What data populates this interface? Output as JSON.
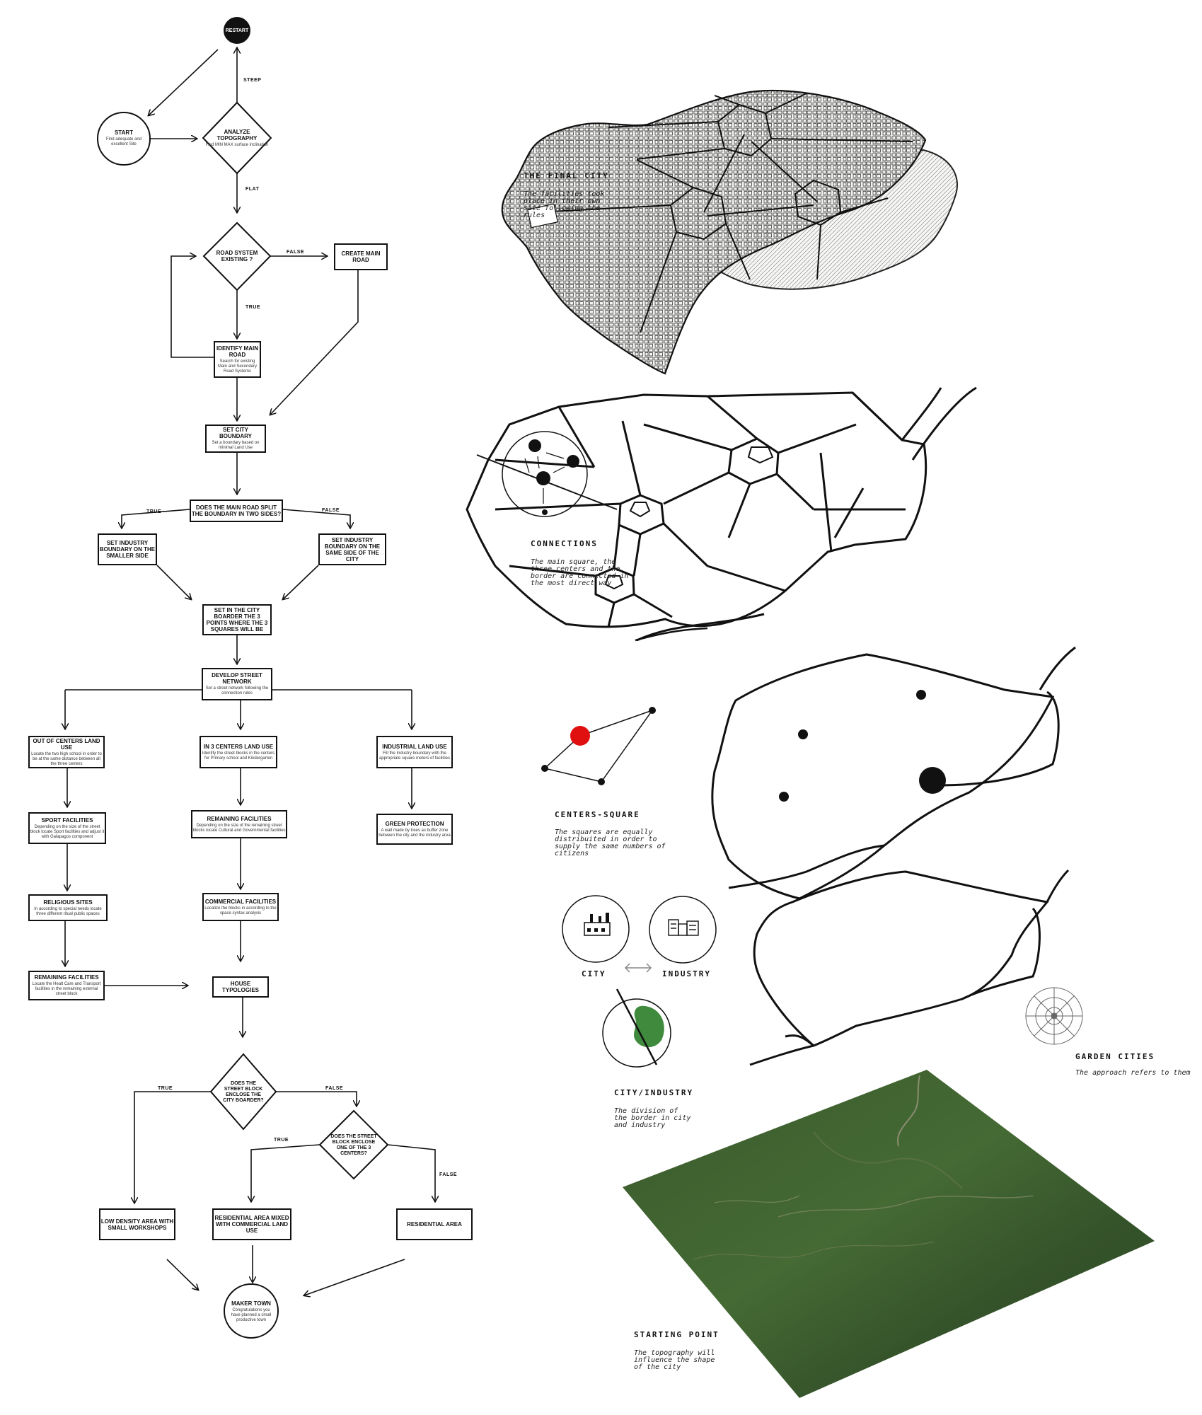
{
  "flowchart": {
    "nodes": {
      "restart": {
        "title": "RESTART"
      },
      "start": {
        "title": "START",
        "desc": "Find adequate and excellent Site"
      },
      "analyze": {
        "title": "ANALYZE TOPOGRAPHY",
        "desc": "Find MIN MAX surface inclination"
      },
      "road_system": {
        "title": "ROAD SYSTEM EXISTING ?"
      },
      "create_road": {
        "title": "CREATE MAIN ROAD"
      },
      "identify_road": {
        "title": "IDENTIFY MAIN ROAD",
        "desc": "Search for existing Main and Secondary Road Systems"
      },
      "city_boundary": {
        "title": "SET CITY BOUNDARY",
        "desc": "Set a boundary based on minimal Land Use"
      },
      "road_split": {
        "title": "DOES THE MAIN ROAD SPLIT THE BOUNDARY IN TWO SIDES?"
      },
      "industry_smaller": {
        "title": "SET INDUSTRY BOUNDARY ON THE SMALLER SIDE"
      },
      "industry_same": {
        "title": "SET INDUSTRY BOUNDARY ON THE SAME SIDE OF THE CITY"
      },
      "three_points": {
        "title": "SET IN THE CITY BOARDER THE 3 POINTS WHERE THE 3 SQUARES WILL BE"
      },
      "street_network": {
        "title": "DEVELOP STREET NETWORK",
        "desc": "Set a street network following the connection rules"
      },
      "out_centers": {
        "title": "OUT OF CENTERS LAND USE",
        "desc": "Locate the two high school in order to be at the same distance between all the three centers"
      },
      "in_centers": {
        "title": "IN 3 CENTERS LAND USE",
        "desc": "Identify the street blocks in the centers for Primary school and Kindergarten"
      },
      "industrial": {
        "title": "INDUSTRIAL LAND USE",
        "desc": "Fill the Industry boundary with the appropriate square meters of facilities"
      },
      "sport": {
        "title": "SPORT FACILITIES",
        "desc": "Depending on the size of the street block locate Sport facilities and adjust it with Galapagos component"
      },
      "remaining1": {
        "title": "REMAINING FACILITIES",
        "desc": "Depending on the size of the remaining street blocks locate Cultural and Governmental facilities"
      },
      "green": {
        "title": "GREEN PROTECTION",
        "desc": "A wall made by trees as buffer zone between the city and the industry area"
      },
      "religious": {
        "title": "RELIGIOUS SITES",
        "desc": "In according to special needs locate three different ritual public spaces"
      },
      "commercial": {
        "title": "COMMERCIAL FACILITIES",
        "desc": "Localize the blocks in according to the space syntax analysis"
      },
      "remaining2": {
        "title": "REMAINING FACILITIES",
        "desc": "Locate the Healt Care and Transport facilities in the remaining external street block"
      },
      "house": {
        "title": "HOUSE TYPOLOGIES"
      },
      "enclose_boarder": {
        "title": "DOES THE STREET BLOCK ENCLOSE THE CITY BOARDER?"
      },
      "enclose_center": {
        "title": "DOES THE STREET BLOCK ENCLOSE ONE OF THE 3 CENTERS?"
      },
      "low_density": {
        "title": "LOW DENSITY AREA WITH SMALL WORKSHOPS"
      },
      "residential_mixed": {
        "title": "RESIDENTIAL AREA MIXED WITH COMMERCIAL LAND USE"
      },
      "residential": {
        "title": "RESIDENTIAL AREA"
      },
      "maker_town": {
        "title": "MAKER TOWN",
        "desc": "Congratulations you have planned a small productive town"
      }
    },
    "edge_labels": {
      "steep": "STEEP",
      "flat": "FLAT",
      "false1": "FALSE",
      "true1": "TRUE",
      "true2": "TRUE",
      "false2": "FALSE",
      "true3": "TRUE",
      "false3": "FALSE",
      "true4": "TRUE",
      "false4": "FALSE"
    }
  },
  "panels": {
    "final_city": {
      "heading": "THE FINAL CITY",
      "desc": "The facilities took place in their own site following the rules"
    },
    "connections": {
      "heading": "CONNECTIONS",
      "desc": "The main square, the three centers and the border are connected in the most direct way"
    },
    "centers_square": {
      "heading": "CENTERS-SQUARE",
      "desc": "The squares are equally distribuited in order to supply the same numbers of citizens"
    },
    "city_industry": {
      "heading": "CITY/INDUSTRY",
      "desc": "The division of the border in city and industry",
      "city_label": "CITY",
      "industry_label": "INDUSTRY"
    },
    "garden_cities": {
      "heading": "GARDEN CITIES",
      "desc": "The approach refers to them"
    },
    "starting_point": {
      "heading": "STARTING POINT",
      "desc": "The topography will influence the shape of the city"
    }
  },
  "colors": {
    "line": "#111111",
    "accent_red": "#e01010",
    "accent_green": "#3f8a3c",
    "terrain": "#3c5a2e"
  },
  "icons": [
    "factory-icon",
    "buildings-icon",
    "double-arrow-icon",
    "garden-city-diagram-icon"
  ]
}
